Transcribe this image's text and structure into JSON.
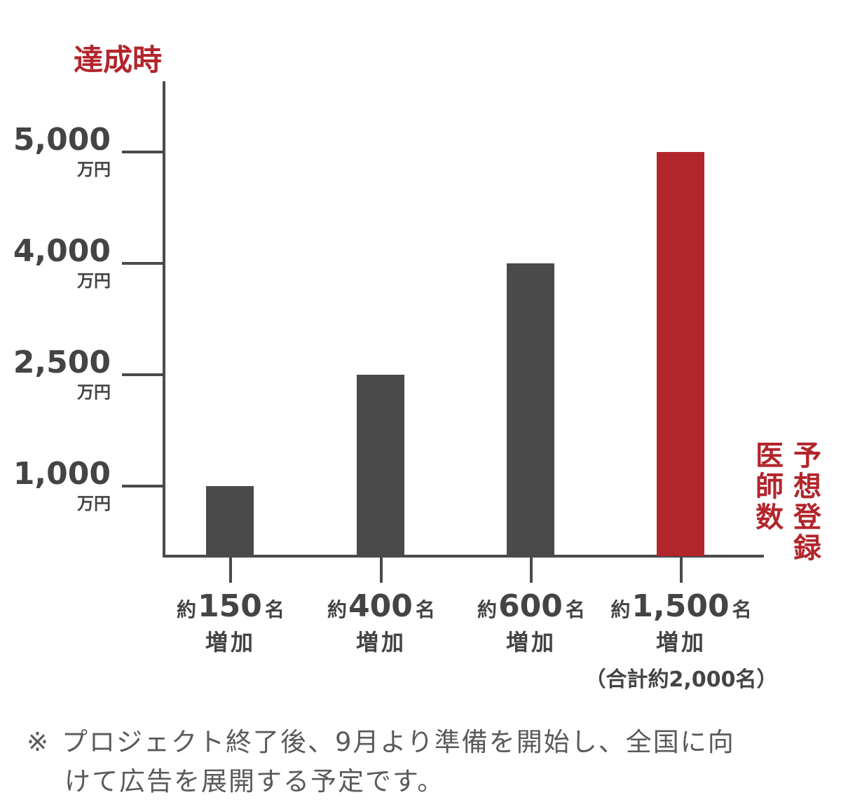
{
  "chart_data": {
    "type": "bar",
    "y_axis_title": "達成時",
    "x_axis_title": "予想登録医師数",
    "y_ticks": [
      {
        "value": "1,000",
        "unit": "万円"
      },
      {
        "value": "2,500",
        "unit": "万円"
      },
      {
        "value": "4,000",
        "unit": "万円"
      },
      {
        "value": "5,000",
        "unit": "万円"
      }
    ],
    "categories": [
      {
        "prefix": "約",
        "number": "150",
        "suffix": "名",
        "line2": "増加",
        "line3": ""
      },
      {
        "prefix": "約",
        "number": "400",
        "suffix": "名",
        "line2": "増加",
        "line3": ""
      },
      {
        "prefix": "約",
        "number": "600",
        "suffix": "名",
        "line2": "増加",
        "line3": ""
      },
      {
        "prefix": "約",
        "number": "1,500",
        "suffix": "名",
        "line2": "増加",
        "line3": "（合計約2,000名）"
      }
    ],
    "values": [
      1000,
      2500,
      4000,
      5000
    ],
    "highlight_index": 3,
    "colors": {
      "bar": "#4a4a4a",
      "highlight": "#b2252c",
      "axis": "#4a4a4a",
      "accent_text": "#b2252c",
      "label_text": "#444444"
    }
  },
  "note": {
    "mark": "※",
    "line1": "プロジェクト終了後、9月より準備を開始し、全国に向",
    "line2": "けて広告を展開する予定です。"
  }
}
